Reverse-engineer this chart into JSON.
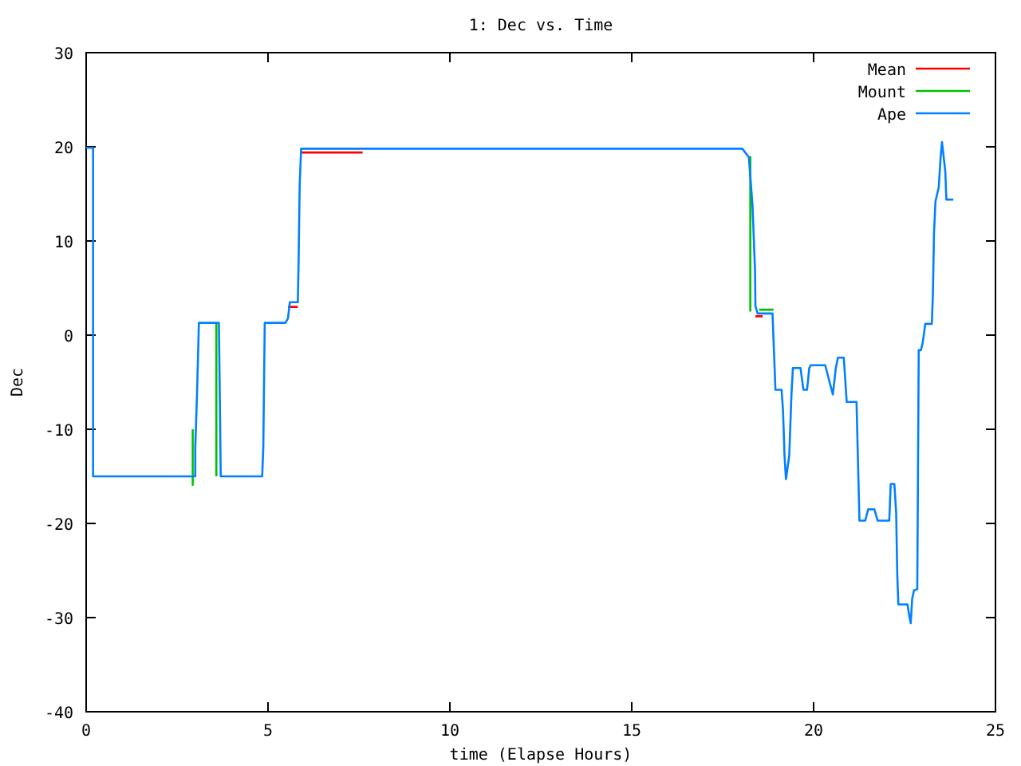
{
  "chart_data": {
    "type": "line",
    "title": "1: Dec vs. Time",
    "xlabel": "time (Elapse Hours)",
    "ylabel": "Dec",
    "x": [
      0,
      0.19,
      0.19,
      3.0,
      3.0,
      3.05,
      3.1,
      3.65,
      3.7,
      4.84,
      4.87,
      4.91,
      5.48,
      5.55,
      5.6,
      5.82,
      5.84,
      5.87,
      5.91,
      18.04,
      18.22,
      18.32,
      18.39,
      18.4,
      18.46,
      18.87,
      18.93,
      18.95,
      19.12,
      19.16,
      19.2,
      19.24,
      19.33,
      19.39,
      19.43,
      19.64,
      19.72,
      19.82,
      19.88,
      19.92,
      20.32,
      20.44,
      20.53,
      20.61,
      20.67,
      20.83,
      20.91,
      21.18,
      21.2,
      21.24,
      21.26,
      21.42,
      21.5,
      21.67,
      21.76,
      22.08,
      22.12,
      22.22,
      22.27,
      22.3,
      22.33,
      22.58,
      22.63,
      22.67,
      22.71,
      22.76,
      22.85,
      22.87,
      22.89,
      22.95,
      23.0,
      23.07,
      23.25,
      23.28,
      23.31,
      23.35,
      23.44,
      23.49,
      23.53,
      23.62,
      23.65,
      23.84
    ],
    "series": [
      {
        "name": "Mean",
        "color": "#ff0000",
        "x": [
          5.55,
          5.82,
          5.83,
          5.91,
          7.6,
          7.61,
          18.4,
          18.6
        ],
        "values": [
          3.0,
          3.0,
          null,
          19.4,
          19.4,
          null,
          2.0,
          2.0
        ]
      },
      {
        "name": "Mount",
        "color": "#00c000",
        "x": [
          2.93,
          2.93,
          2.94,
          3.58,
          3.58,
          3.59,
          18.26,
          18.26,
          18.27,
          18.5,
          18.9
        ],
        "values": [
          -16,
          -10,
          null,
          1.3,
          -15,
          null,
          19,
          2.5,
          null,
          2.7,
          2.7
        ]
      },
      {
        "name": "Ape",
        "color": "#0080ff",
        "values": [
          19.9,
          19.9,
          -15,
          -15,
          -12,
          -6,
          1.3,
          1.3,
          -15,
          -15,
          -12,
          1.3,
          1.3,
          1.8,
          3.5,
          3.5,
          7.6,
          15.8,
          19.8,
          19.8,
          18.9,
          13.8,
          6.8,
          3.1,
          2.3,
          2.3,
          -3.7,
          -5.8,
          -5.8,
          -8.1,
          -12.8,
          -15.3,
          -12.8,
          -6.4,
          -3.5,
          -3.5,
          -5.8,
          -5.8,
          -3.5,
          -3.2,
          -3.2,
          -5,
          -6.3,
          -3.5,
          -2.4,
          -2.4,
          -7.1,
          -7.1,
          -10.3,
          -16.5,
          -19.7,
          -19.7,
          -18.5,
          -18.5,
          -19.7,
          -19.7,
          -15.8,
          -15.8,
          -18.9,
          -25.4,
          -28.6,
          -28.6,
          -29.8,
          -30.6,
          -28,
          -27.1,
          -27,
          -14.3,
          -1.6,
          -1.6,
          -0.8,
          1.2,
          1.2,
          4.4,
          10.8,
          14.2,
          15.7,
          18.8,
          20.5,
          17.4,
          14.4,
          14.4
        ]
      }
    ],
    "xlim": [
      0,
      25
    ],
    "xticks": [
      0,
      5,
      10,
      15,
      20,
      25
    ],
    "ylim": [
      -40,
      30
    ],
    "yticks": [
      -40,
      -30,
      -20,
      -10,
      0,
      10,
      20,
      30
    ],
    "grid": false,
    "legend": "top right"
  }
}
